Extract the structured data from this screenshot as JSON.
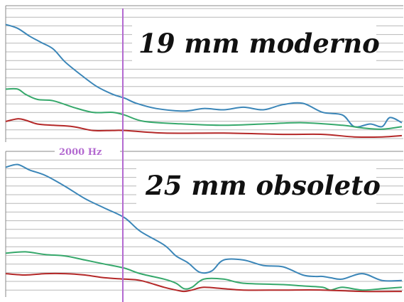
{
  "colors": {
    "blue": "#3b86b8",
    "green": "#36a86b",
    "red": "#b42828",
    "marker": "#b36ad0",
    "grid": "#b8b8b8",
    "frame": "#8a8a8a"
  },
  "marker": {
    "label": "2000 Hz",
    "freq": 2000
  },
  "chart_data": [
    {
      "type": "line",
      "title": "19 mm moderno",
      "grid": true,
      "xlim": [
        0,
        100
      ],
      "ylim": [
        0,
        100
      ],
      "series": [
        {
          "color": "blue",
          "x": [
            0,
            3,
            6,
            9,
            12,
            15,
            19,
            23,
            27,
            30,
            33,
            38,
            45,
            50,
            55,
            60,
            65,
            70,
            75,
            80,
            85,
            88,
            92,
            95,
            97,
            100
          ],
          "values": [
            91,
            88,
            82,
            77,
            72,
            62,
            52,
            43,
            37,
            34,
            30,
            26,
            24,
            26,
            25,
            27,
            25,
            29,
            30,
            23,
            21,
            12,
            14,
            12,
            19,
            15
          ]
        },
        {
          "color": "green",
          "x": [
            0,
            3,
            5,
            8,
            12,
            17,
            22,
            27,
            30,
            35,
            45,
            55,
            65,
            75,
            85,
            90,
            95,
            100
          ],
          "values": [
            41,
            41,
            37,
            33,
            32,
            27,
            23,
            23,
            21,
            16,
            14,
            13,
            14,
            15,
            13,
            11,
            10,
            12
          ]
        },
        {
          "color": "red",
          "x": [
            0,
            3,
            5,
            8,
            12,
            17,
            22,
            27,
            30,
            40,
            55,
            70,
            80,
            88,
            95,
            100
          ],
          "values": [
            16,
            18,
            17,
            14,
            13,
            12,
            9,
            9,
            9,
            7,
            7,
            6,
            6,
            4,
            4,
            5
          ]
        }
      ]
    },
    {
      "type": "line",
      "title": "25 mm obsoleto",
      "grid": true,
      "xlim": [
        0,
        100
      ],
      "ylim": [
        0,
        100
      ],
      "series": [
        {
          "color": "blue",
          "x": [
            0,
            3,
            6,
            10,
            15,
            20,
            25,
            30,
            34,
            40,
            43,
            46,
            49,
            52,
            55,
            60,
            65,
            70,
            75,
            78,
            80,
            82,
            85,
            90,
            95,
            100
          ],
          "values": [
            92,
            94,
            90,
            86,
            78,
            69,
            62,
            55,
            45,
            35,
            27,
            22,
            15,
            16,
            24,
            24,
            20,
            19,
            13,
            12,
            12,
            11,
            10,
            14,
            9,
            9
          ]
        },
        {
          "color": "green",
          "x": [
            0,
            5,
            10,
            15,
            20,
            25,
            30,
            34,
            40,
            43,
            45,
            47,
            50,
            55,
            60,
            70,
            75,
            80,
            82,
            85,
            90,
            95,
            100
          ],
          "values": [
            29,
            30,
            28,
            27,
            24,
            21,
            18,
            14,
            10,
            7,
            3,
            4,
            10,
            10,
            7,
            6,
            5,
            4,
            2,
            4,
            2,
            3,
            4
          ]
        },
        {
          "color": "red",
          "x": [
            0,
            5,
            10,
            15,
            20,
            25,
            30,
            34,
            40,
            43,
            45,
            47,
            50,
            55,
            60,
            70,
            80,
            90,
            100
          ],
          "values": [
            14,
            13,
            14,
            14,
            13,
            11,
            10,
            9,
            4,
            2,
            1,
            2,
            4,
            3,
            2,
            2,
            2,
            1,
            1
          ]
        }
      ]
    }
  ]
}
